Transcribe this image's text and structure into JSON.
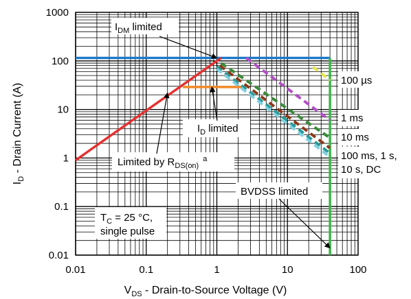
{
  "chart_data": {
    "type": "line",
    "xscale": "log",
    "yscale": "log",
    "xlim": [
      0.01,
      100
    ],
    "ylim": [
      0.01,
      1000
    ],
    "grid": true,
    "xlabel": {
      "main": "V",
      "sub": "DS",
      "rest": " - Drain-to-Source Voltage (V)"
    },
    "ylabel": {
      "main": "I",
      "sub": "D",
      "rest": " - Drain Current (A)"
    },
    "xticks": [
      {
        "value": 0.01,
        "label": "0.01"
      },
      {
        "value": 0.1,
        "label": "0.1"
      },
      {
        "value": 1,
        "label": "1"
      },
      {
        "value": 10,
        "label": "10"
      },
      {
        "value": 100,
        "label": "100"
      }
    ],
    "yticks": [
      {
        "value": 0.01,
        "label": "0.01"
      },
      {
        "value": 0.1,
        "label": "0.1"
      },
      {
        "value": 1,
        "label": "1"
      },
      {
        "value": 10,
        "label": "10"
      },
      {
        "value": 100,
        "label": "100"
      },
      {
        "value": 1000,
        "label": "1000"
      }
    ],
    "series": [
      {
        "color": "#1f78c8",
        "dash": false,
        "points": [
          [
            0.01,
            115
          ],
          [
            40,
            115
          ]
        ]
      },
      {
        "color": "#e53030",
        "dash": false,
        "points": [
          [
            0.01,
            0.9
          ],
          [
            1.15,
            115
          ]
        ]
      },
      {
        "color": "#f28c28",
        "dash": false,
        "points": [
          [
            0.33,
            29
          ],
          [
            2.4,
            29
          ]
        ]
      },
      {
        "color": "#3cb54a",
        "dash": false,
        "points": [
          [
            40,
            0.01
          ],
          [
            40,
            115
          ]
        ]
      },
      {
        "color": "#e6e64a",
        "dash": true,
        "points": [
          [
            23,
            75
          ],
          [
            40,
            40
          ]
        ]
      },
      {
        "color": "#b44fc8",
        "dash": true,
        "points": [
          [
            2.6,
            115
          ],
          [
            40,
            6
          ]
        ]
      },
      {
        "color": "#3a8a3a",
        "dash": true,
        "points": [
          [
            1.15,
            90
          ],
          [
            40,
            2.6
          ]
        ]
      },
      {
        "color": "#8b3a1a",
        "dash": true,
        "points": [
          [
            1.1,
            80
          ],
          [
            40,
            1.6
          ]
        ]
      },
      {
        "color": "#2a9a9a",
        "dash": true,
        "points": [
          [
            1.0,
            76
          ],
          [
            40,
            1.25
          ]
        ]
      },
      {
        "color": "#7fd0e0",
        "dash": true,
        "points": [
          [
            1.0,
            68
          ],
          [
            40,
            1.05
          ]
        ]
      }
    ],
    "annotations": {
      "idm": {
        "main": "I",
        "sub": "DM",
        "rest": " limited",
        "target": [
          1.0,
          115
        ]
      },
      "id": {
        "main": "I",
        "sub": "D",
        "rest": " limited",
        "target": [
          0.85,
          29
        ]
      },
      "rds": {
        "main": "Limited by R",
        "sub": "DS(on)",
        "sup": "a",
        "target": [
          0.2,
          22
        ]
      },
      "bvdss": {
        "text": "BVDSS limited",
        "target": [
          40,
          0.014
        ]
      },
      "p100us": "100 µs",
      "p1ms": "1 ms",
      "p10ms": "10 ms",
      "p100ms_line1": "100 ms, 1 s,",
      "p100ms_line2": "10 s, DC",
      "tc_line1_main": "T",
      "tc_line1_sub": "C",
      "tc_line1_rest": " = 25 °C,",
      "tc_line2": "single pulse"
    }
  }
}
